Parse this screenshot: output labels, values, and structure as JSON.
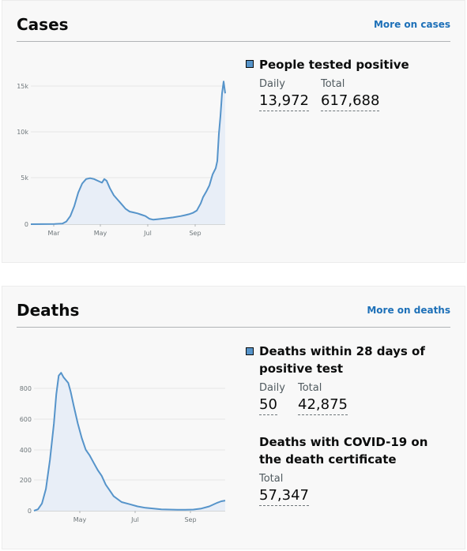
{
  "colors": {
    "accent": "#5694ca",
    "link": "#1d70b8",
    "fill": "#e8eef7"
  },
  "cases": {
    "title": "Cases",
    "more_link": "More on cases",
    "metric": {
      "heading": "People tested positive",
      "daily_label": "Daily",
      "daily_value": "13,972",
      "total_label": "Total",
      "total_value": "617,688"
    },
    "chart_data": {
      "type": "area",
      "y_ticks": [
        "15k",
        "10k",
        "5k",
        "0"
      ],
      "x_ticks": [
        "Mar",
        "May",
        "Jul",
        "Sep"
      ],
      "ylim": [
        0,
        16000
      ],
      "xlim": [
        0,
        246
      ],
      "series": [
        {
          "values": [
            [
              0,
              0
            ],
            [
              30,
              20
            ],
            [
              40,
              60
            ],
            [
              45,
              300
            ],
            [
              50,
              900
            ],
            [
              55,
              2000
            ],
            [
              60,
              3500
            ],
            [
              65,
              4500
            ],
            [
              70,
              5000
            ],
            [
              75,
              5100
            ],
            [
              80,
              5000
            ],
            [
              85,
              4800
            ],
            [
              90,
              4600
            ],
            [
              93,
              5000
            ],
            [
              96,
              4800
            ],
            [
              100,
              4000
            ],
            [
              105,
              3200
            ],
            [
              110,
              2700
            ],
            [
              115,
              2200
            ],
            [
              120,
              1700
            ],
            [
              125,
              1400
            ],
            [
              130,
              1300
            ],
            [
              135,
              1200
            ],
            [
              140,
              1050
            ],
            [
              145,
              900
            ],
            [
              150,
              600
            ],
            [
              155,
              500
            ],
            [
              160,
              550
            ],
            [
              170,
              650
            ],
            [
              180,
              750
            ],
            [
              190,
              900
            ],
            [
              195,
              1000
            ],
            [
              200,
              1100
            ],
            [
              205,
              1250
            ],
            [
              210,
              1500
            ],
            [
              215,
              2300
            ],
            [
              218,
              3000
            ],
            [
              222,
              3600
            ],
            [
              226,
              4300
            ],
            [
              230,
              5500
            ],
            [
              234,
              6200
            ],
            [
              236,
              7000
            ],
            [
              238,
              10000
            ],
            [
              240,
              12000
            ],
            [
              242,
              14500
            ],
            [
              244,
              15800
            ],
            [
              246,
              14500
            ]
          ]
        }
      ]
    }
  },
  "deaths": {
    "title": "Deaths",
    "more_link": "More on deaths",
    "metric1": {
      "heading": "Deaths within 28 days of positive test",
      "daily_label": "Daily",
      "daily_value": "50",
      "total_label": "Total",
      "total_value": "42,875"
    },
    "metric2": {
      "heading": "Deaths with COVID-19 on the death certificate",
      "total_label": "Total",
      "total_value": "57,347"
    },
    "chart_data": {
      "type": "area",
      "y_ticks": [
        "800",
        "600",
        "400",
        "200",
        "0"
      ],
      "x_ticks": [
        "May",
        "Jul",
        "Sep"
      ],
      "ylim": [
        0,
        1000
      ],
      "xlim": [
        0,
        240
      ],
      "series": [
        {
          "values": [
            [
              0,
              0
            ],
            [
              5,
              10
            ],
            [
              10,
              50
            ],
            [
              15,
              150
            ],
            [
              20,
              350
            ],
            [
              25,
              600
            ],
            [
              28,
              800
            ],
            [
              31,
              930
            ],
            [
              34,
              950
            ],
            [
              37,
              920
            ],
            [
              40,
              900
            ],
            [
              43,
              880
            ],
            [
              46,
              820
            ],
            [
              50,
              720
            ],
            [
              55,
              600
            ],
            [
              60,
              500
            ],
            [
              65,
              420
            ],
            [
              70,
              380
            ],
            [
              75,
              330
            ],
            [
              80,
              280
            ],
            [
              85,
              240
            ],
            [
              90,
              180
            ],
            [
              95,
              140
            ],
            [
              100,
              100
            ],
            [
              110,
              60
            ],
            [
              120,
              45
            ],
            [
              130,
              30
            ],
            [
              140,
              20
            ],
            [
              150,
              15
            ],
            [
              160,
              10
            ],
            [
              170,
              8
            ],
            [
              180,
              7
            ],
            [
              190,
              7
            ],
            [
              200,
              8
            ],
            [
              210,
              15
            ],
            [
              220,
              30
            ],
            [
              230,
              55
            ],
            [
              235,
              65
            ],
            [
              240,
              70
            ]
          ]
        }
      ]
    }
  }
}
